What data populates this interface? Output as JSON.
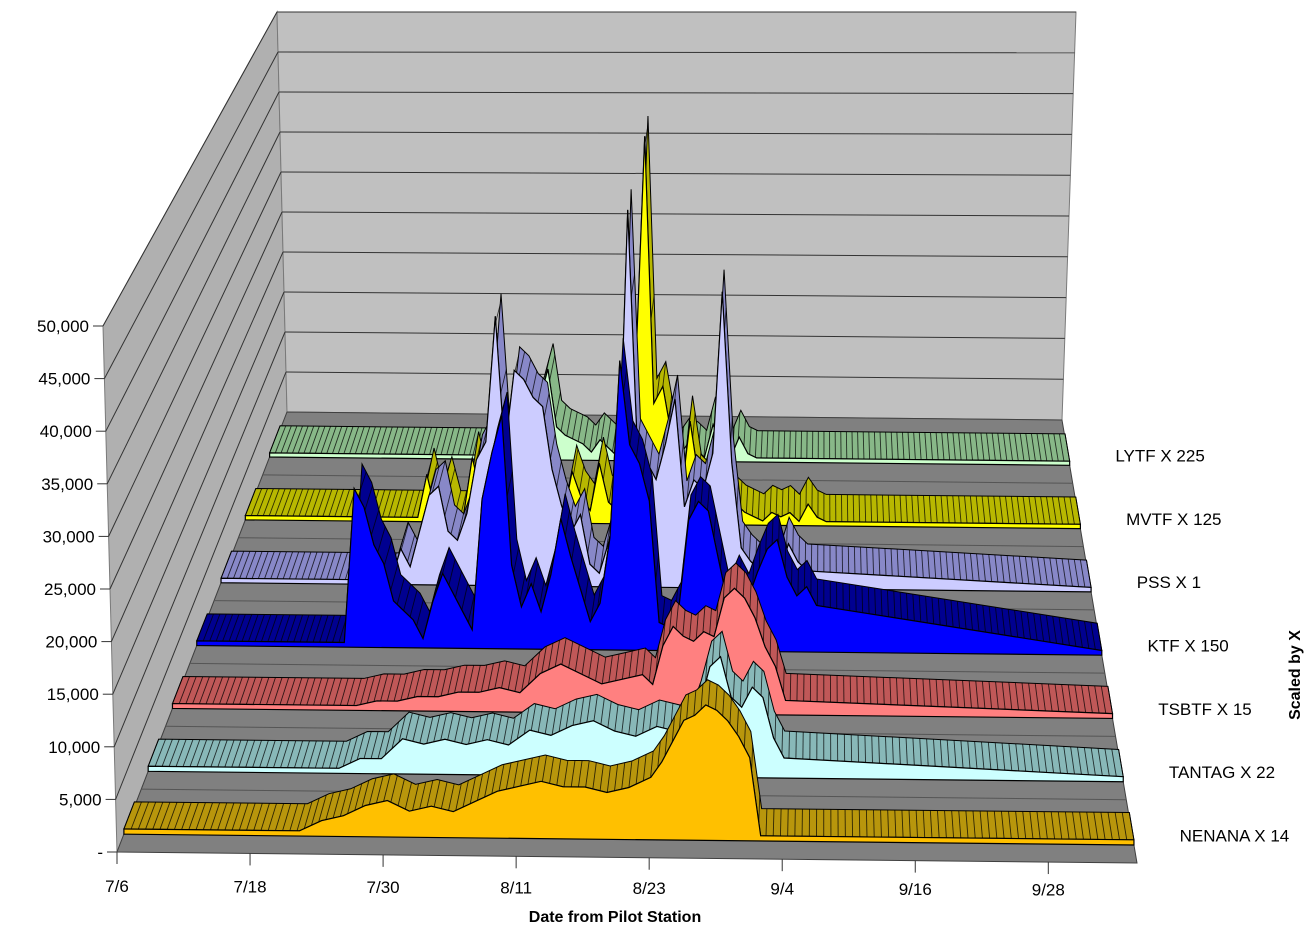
{
  "chart_data": {
    "type": "area",
    "subtype": "3d-stacked-depth",
    "xlabel": "Date from Pilot Station",
    "ylabel": "",
    "zlabel": "Scaled by X",
    "ylim": [
      0,
      50000
    ],
    "y_ticks": [
      "-",
      "5,000",
      "10,000",
      "15,000",
      "20,000",
      "25,000",
      "30,000",
      "35,000",
      "40,000",
      "45,000",
      "50,000"
    ],
    "x_tick_labels": [
      "7/6",
      "7/18",
      "7/30",
      "8/11",
      "8/23",
      "9/4",
      "9/16",
      "9/28"
    ],
    "x_start": "7/6",
    "x_end": "10/6",
    "grid": true,
    "series": [
      {
        "name": "NENANA X 14",
        "color": "#ffc000",
        "band": "#b8960c",
        "dates": [
          "7/6",
          "7/22",
          "7/24",
          "7/26",
          "7/28",
          "7/30",
          "8/1",
          "8/3",
          "8/5",
          "8/7",
          "8/9",
          "8/11",
          "8/13",
          "8/15",
          "8/17",
          "8/19",
          "8/21",
          "8/23",
          "8/24",
          "8/25",
          "8/26",
          "8/27",
          "8/28",
          "8/29",
          "8/30",
          "8/31",
          "9/1",
          "9/2",
          "10/6"
        ],
        "values": [
          500,
          500,
          1500,
          2000,
          3000,
          3500,
          2500,
          3000,
          2500,
          3500,
          4500,
          5000,
          5500,
          5000,
          5000,
          4500,
          5000,
          6000,
          7500,
          9500,
          11500,
          12000,
          13000,
          12500,
          11500,
          10000,
          8000,
          500,
          500
        ]
      },
      {
        "name": "TANTAG X 22",
        "color": "#ccffff",
        "band": "#88b8b8",
        "dates": [
          "7/6",
          "7/24",
          "7/26",
          "7/28",
          "7/30",
          "8/1",
          "8/3",
          "8/5",
          "8/7",
          "8/9",
          "8/11",
          "8/13",
          "8/15",
          "8/17",
          "8/19",
          "8/21",
          "8/23",
          "8/25",
          "8/26",
          "8/27",
          "8/28",
          "8/29",
          "8/30",
          "8/31",
          "9/1",
          "9/2",
          "9/3",
          "9/4",
          "10/6"
        ],
        "values": [
          500,
          500,
          1500,
          1500,
          3500,
          3000,
          3500,
          3000,
          3500,
          3000,
          4500,
          4000,
          5000,
          5500,
          4500,
          4000,
          5000,
          4500,
          4000,
          7000,
          11000,
          12000,
          8000,
          7000,
          9000,
          8000,
          4000,
          2000,
          500
        ]
      },
      {
        "name": "TSBTF X 15",
        "color": "#ff8080",
        "band": "#c05858",
        "dates": [
          "7/6",
          "7/24",
          "7/26",
          "7/28",
          "7/30",
          "8/1",
          "8/3",
          "8/5",
          "8/7",
          "8/9",
          "8/11",
          "8/13",
          "8/15",
          "8/17",
          "8/19",
          "8/21",
          "8/22",
          "8/23",
          "8/24",
          "8/25",
          "8/26",
          "8/27",
          "8/28",
          "8/29",
          "8/30",
          "8/31",
          "9/1",
          "9/2",
          "9/3",
          "9/4",
          "10/6"
        ],
        "values": [
          500,
          500,
          1000,
          1000,
          1500,
          1500,
          2000,
          2000,
          2500,
          2000,
          4000,
          5000,
          4000,
          3000,
          3500,
          4000,
          3000,
          7000,
          9000,
          8000,
          7500,
          8500,
          8000,
          12000,
          13000,
          12000,
          10000,
          7000,
          5000,
          1500,
          500
        ]
      },
      {
        "name": "KTF X 150",
        "color": "#0000ff",
        "band": "#000090",
        "dates": [
          "7/6",
          "7/21",
          "7/22",
          "7/23",
          "7/24",
          "7/25",
          "7/26",
          "7/27",
          "7/28",
          "7/29",
          "7/30",
          "7/31",
          "8/1",
          "8/2",
          "8/3",
          "8/4",
          "8/5",
          "8/6",
          "8/7",
          "8/8",
          "8/9",
          "8/10",
          "8/11",
          "8/12",
          "8/13",
          "8/14",
          "8/15",
          "8/16",
          "8/17",
          "8/18",
          "8/19",
          "8/20",
          "8/21",
          "8/22",
          "8/23",
          "8/24",
          "8/25",
          "8/26",
          "8/27",
          "8/28",
          "8/29",
          "8/30",
          "8/31",
          "9/1",
          "9/2",
          "9/3",
          "9/4",
          "9/5",
          "9/6",
          "9/7",
          "10/6"
        ],
        "values": [
          500,
          500,
          17000,
          15000,
          11000,
          9000,
          5000,
          4000,
          3000,
          1000,
          5000,
          8000,
          6000,
          4000,
          2000,
          16000,
          21000,
          25000,
          9000,
          4500,
          7000,
          4000,
          8000,
          14000,
          10000,
          6500,
          3000,
          5000,
          12000,
          31000,
          22000,
          20000,
          16000,
          3000,
          2500,
          4500,
          14000,
          16000,
          15000,
          10000,
          5000,
          7500,
          5500,
          8500,
          11000,
          12000,
          8000,
          6000,
          7000,
          5000,
          500
        ]
      },
      {
        "name": "PSS X 1",
        "color": "#ccccff",
        "band": "#8888c8",
        "dates": [
          "7/6",
          "7/24",
          "7/25",
          "7/26",
          "7/27",
          "7/28",
          "7/29",
          "7/30",
          "7/31",
          "8/1",
          "8/2",
          "8/3",
          "8/4",
          "8/5",
          "8/6",
          "8/7",
          "8/8",
          "8/9",
          "8/10",
          "8/11",
          "8/12",
          "8/13",
          "8/14",
          "8/15",
          "8/16",
          "8/17",
          "8/18",
          "8/19",
          "8/20",
          "8/21",
          "8/22",
          "8/23",
          "8/24",
          "8/25",
          "8/26",
          "8/27",
          "8/28",
          "8/29",
          "8/30",
          "8/31",
          "9/1",
          "9/2",
          "9/3",
          "9/4",
          "9/5",
          "9/6",
          "10/6"
        ],
        "values": [
          500,
          500,
          4000,
          2000,
          6000,
          10000,
          11000,
          6000,
          5000,
          8000,
          14000,
          16000,
          30000,
          15000,
          24000,
          23000,
          21000,
          20000,
          13000,
          9000,
          6000,
          8000,
          2500,
          1500,
          5000,
          10000,
          42000,
          16000,
          14000,
          12000,
          16000,
          21000,
          9000,
          12000,
          11000,
          15000,
          33000,
          14000,
          4500,
          3000,
          2000,
          4000,
          1500,
          5000,
          3000,
          2000,
          500
        ]
      },
      {
        "name": "MVTF X 125",
        "color": "#ffff00",
        "band": "#b8b800",
        "dates": [
          "7/6",
          "7/25",
          "7/26",
          "7/27",
          "7/28",
          "7/29",
          "7/30",
          "7/31",
          "8/1",
          "8/2",
          "8/3",
          "8/4",
          "8/5",
          "8/6",
          "8/7",
          "8/8",
          "8/9",
          "8/10",
          "8/11",
          "8/12",
          "8/13",
          "8/14",
          "8/15",
          "8/16",
          "8/17",
          "8/18",
          "8/19",
          "8/20",
          "8/21",
          "8/22",
          "8/23",
          "8/24",
          "8/25",
          "8/26",
          "8/27",
          "8/28",
          "8/29",
          "8/30",
          "8/31",
          "9/1",
          "9/2",
          "9/3",
          "9/4",
          "9/5",
          "9/6",
          "9/7",
          "9/8",
          "10/6"
        ],
        "values": [
          500,
          500,
          5500,
          1000,
          4500,
          500,
          500,
          7500,
          3000,
          500,
          500,
          2000,
          3000,
          7000,
          4000,
          5000,
          2500,
          500,
          6000,
          3000,
          1500,
          7000,
          2500,
          1500,
          9000,
          18000,
          45000,
          14000,
          16000,
          10000,
          3000,
          12000,
          5000,
          4000,
          3000,
          6000,
          2500,
          1500,
          1000,
          500,
          1500,
          1000,
          1500,
          500,
          2500,
          1000,
          500,
          500
        ]
      },
      {
        "name": "LYTF X 225",
        "color": "#ccffcc",
        "band": "#88b888",
        "dates": [
          "7/6",
          "8/2",
          "8/3",
          "8/4",
          "8/5",
          "8/6",
          "8/7",
          "8/8",
          "8/9",
          "8/10",
          "8/11",
          "8/12",
          "8/13",
          "8/14",
          "8/15",
          "8/16",
          "8/17",
          "8/18",
          "8/19",
          "8/20",
          "8/21",
          "8/22",
          "8/23",
          "8/24",
          "8/25",
          "8/26",
          "8/27",
          "8/28",
          "8/29",
          "8/30",
          "8/31",
          "10/6"
        ],
        "values": [
          500,
          500,
          4000,
          5000,
          4000,
          7000,
          11000,
          4000,
          3000,
          2500,
          2000,
          1000,
          2500,
          1500,
          500,
          1000,
          3000,
          5000,
          2000,
          1500,
          1000,
          500,
          2000,
          1500,
          500,
          4500,
          1500,
          500,
          3000,
          1000,
          500,
          500
        ]
      }
    ]
  }
}
